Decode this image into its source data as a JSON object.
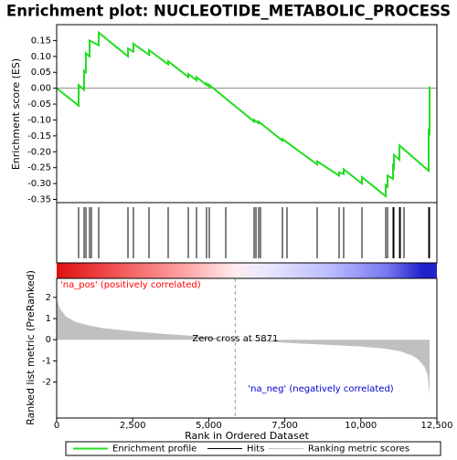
{
  "chart_data": [
    {
      "type": "line",
      "name": "Enrichment profile",
      "title": "Enrichment plot: NUCLEOTIDE_METABOLIC_PROCESS",
      "ylabel": "Enrichment score (ES)",
      "color": "#22dd22",
      "xlim": [
        0,
        12500
      ],
      "ylim": [
        -0.36,
        0.2
      ],
      "yticks": [
        0.15,
        {
          "value": 0.1,
          "label": "0.10"
        },
        0.05,
        {
          "value": 0,
          "label": "0.00"
        },
        -0.05,
        {
          "value": -0.1,
          "label": "-0.10"
        },
        -0.15,
        {
          "value": -0.2,
          "label": "-0.20"
        },
        -0.25,
        {
          "value": -0.3,
          "label": "-0.30"
        },
        -0.35
      ],
      "x": [
        0,
        721,
        721,
        902,
        902,
        962,
        962,
        1082,
        1082,
        1382,
        1382,
        2344,
        2344,
        2524,
        2524,
        3035,
        3035,
        3666,
        3666,
        4327,
        4327,
        4598,
        4598,
        4928,
        4928,
        5018,
        5018,
        6491,
        6491,
        6641,
        6641,
        7422,
        7422,
        8564,
        8564,
        9285,
        9285,
        9435,
        9435,
        10036,
        10036,
        10818,
        10818,
        10878,
        10878,
        11058,
        11058,
        11088,
        11088,
        11269,
        11269,
        12230,
        12230,
        12260,
        12260
      ],
      "values": [
        0,
        -0.055,
        0.01,
        -0.005,
        0.055,
        0.05,
        0.11,
        0.1,
        0.15,
        0.135,
        0.175,
        0.1,
        0.125,
        0.115,
        0.14,
        0.105,
        0.12,
        0.075,
        0.085,
        0.035,
        0.045,
        0.025,
        0.035,
        0.01,
        0.015,
        0.005,
        0.01,
        -0.105,
        -0.1,
        -0.11,
        -0.105,
        -0.165,
        -0.16,
        -0.24,
        -0.23,
        -0.275,
        -0.265,
        -0.27,
        -0.255,
        -0.3,
        -0.28,
        -0.34,
        -0.305,
        -0.31,
        -0.275,
        -0.285,
        -0.245,
        -0.25,
        -0.21,
        -0.225,
        -0.18,
        -0.26,
        -0.135,
        -0.14,
        0.005
      ]
    },
    {
      "type": "rug",
      "name": "Hits",
      "color": "#000000",
      "xlim": [
        0,
        12500
      ],
      "x": [
        721,
        902,
        962,
        1082,
        1142,
        1382,
        2344,
        2524,
        3035,
        3666,
        4327,
        4598,
        4928,
        5018,
        5559,
        6491,
        6551,
        6641,
        6701,
        7422,
        7572,
        8564,
        9285,
        9435,
        10036,
        10818,
        10878,
        11058,
        11088,
        11269,
        11299,
        11419,
        12230,
        12260
      ]
    },
    {
      "type": "area",
      "name": "Ranking metric scores",
      "color": "#c0c0c0",
      "xlabel": "Rank in Ordered Dataset",
      "ylabel": "Ranked list metric (PreRanked)",
      "xlim": [
        0,
        12500
      ],
      "ylim": [
        -3.7,
        2.9
      ],
      "xticks": [
        0,
        {
          "value": 2500,
          "label": "2,500"
        },
        {
          "value": 5000,
          "label": "5,000"
        },
        {
          "value": 7500,
          "label": "7,500"
        },
        {
          "value": 10000,
          "label": "10,000"
        },
        {
          "value": 12500,
          "label": "12,500"
        }
      ],
      "yticks": [
        2,
        1,
        0,
        -1,
        -2
      ],
      "x": [
        0,
        100,
        300,
        600,
        1000,
        1500,
        2500,
        3500,
        4500,
        5871,
        7000,
        8000,
        9000,
        10000,
        10800,
        11300,
        11700,
        11900,
        12100,
        12200,
        12260
      ],
      "values": [
        1.9,
        1.5,
        1.1,
        0.85,
        0.7,
        0.55,
        0.4,
        0.28,
        0.18,
        0,
        -0.1,
        -0.18,
        -0.25,
        -0.32,
        -0.42,
        -0.55,
        -0.75,
        -0.95,
        -1.3,
        -1.7,
        -2.6
      ],
      "zero_cross": {
        "value": 5871,
        "label": "Zero cross at 5871"
      },
      "annotations": [
        {
          "text": "'na_pos' (positively correlated)",
          "color": "#ff0000"
        },
        {
          "text": "'na_neg' (negatively correlated)",
          "color": "#0000cc"
        }
      ]
    }
  ]
}
